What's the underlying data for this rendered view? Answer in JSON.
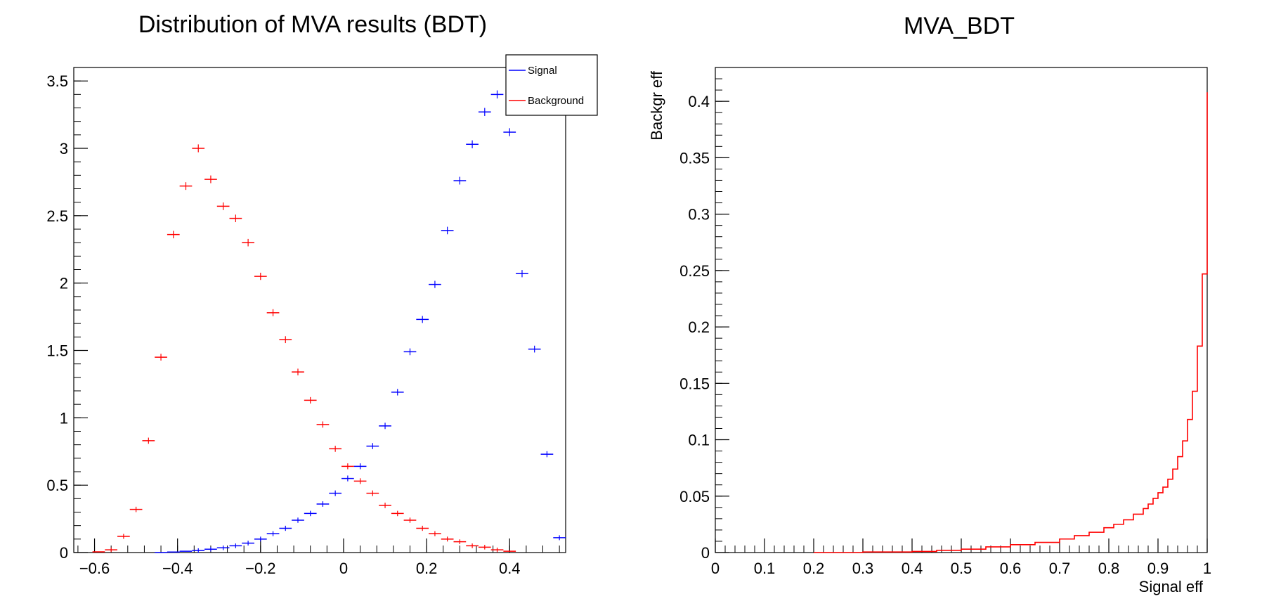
{
  "chart_data": [
    {
      "type": "scatter",
      "title": "Distribution of MVA results (BDT)",
      "xlabel": "",
      "ylabel": "",
      "xlim": [
        -0.65,
        0.535
      ],
      "ylim": [
        0,
        3.6
      ],
      "x_ticks": [
        "−0.6",
        "−0.4",
        "−0.2",
        "0",
        "0.2",
        "0.4"
      ],
      "x_tick_values": [
        -0.6,
        -0.4,
        -0.2,
        0,
        0.2,
        0.4
      ],
      "y_ticks": [
        "0",
        "0.5",
        "1",
        "1.5",
        "2",
        "2.5",
        "3",
        "3.5"
      ],
      "y_tick_values": [
        0,
        0.5,
        1,
        1.5,
        2,
        2.5,
        3,
        3.5
      ],
      "grid": false,
      "legend_position": "top-right",
      "bin_width": 0.03,
      "series": [
        {
          "name": "Signal",
          "color": "#0000ff",
          "x": [
            -0.44,
            -0.41,
            -0.38,
            -0.35,
            -0.32,
            -0.29,
            -0.26,
            -0.23,
            -0.2,
            -0.17,
            -0.14,
            -0.11,
            -0.08,
            -0.05,
            -0.02,
            0.01,
            0.04,
            0.07,
            0.1,
            0.13,
            0.16,
            0.19,
            0.22,
            0.25,
            0.28,
            0.31,
            0.34,
            0.37,
            0.4,
            0.43,
            0.46,
            0.49,
            0.52
          ],
          "y": [
            0.0,
            0.004,
            0.01,
            0.015,
            0.025,
            0.035,
            0.05,
            0.07,
            0.1,
            0.14,
            0.18,
            0.24,
            0.29,
            0.36,
            0.44,
            0.55,
            0.64,
            0.79,
            0.94,
            1.19,
            1.49,
            1.73,
            1.99,
            2.39,
            2.76,
            3.03,
            3.27,
            3.4,
            3.12,
            2.07,
            1.51,
            0.73,
            0.11
          ]
        },
        {
          "name": "Background",
          "color": "#ff0000",
          "x": [
            -0.59,
            -0.56,
            -0.53,
            -0.5,
            -0.47,
            -0.44,
            -0.41,
            -0.38,
            -0.35,
            -0.32,
            -0.29,
            -0.26,
            -0.23,
            -0.2,
            -0.17,
            -0.14,
            -0.11,
            -0.08,
            -0.05,
            -0.02,
            0.01,
            0.04,
            0.07,
            0.1,
            0.13,
            0.16,
            0.19,
            0.22,
            0.25,
            0.28,
            0.31,
            0.34,
            0.37,
            0.4
          ],
          "y": [
            0.005,
            0.02,
            0.12,
            0.32,
            0.83,
            1.45,
            2.36,
            2.72,
            3.0,
            2.77,
            2.57,
            2.48,
            2.3,
            2.05,
            1.78,
            1.58,
            1.34,
            1.13,
            0.95,
            0.77,
            0.64,
            0.53,
            0.44,
            0.35,
            0.29,
            0.24,
            0.18,
            0.14,
            0.1,
            0.08,
            0.05,
            0.04,
            0.02,
            0.01
          ]
        }
      ]
    },
    {
      "type": "line",
      "title": "MVA_BDT",
      "xlabel": "Signal eff",
      "ylabel": "Backgr eff",
      "xlim": [
        0,
        1
      ],
      "ylim": [
        0,
        0.43
      ],
      "x_ticks": [
        "0",
        "0.1",
        "0.2",
        "0.3",
        "0.4",
        "0.5",
        "0.6",
        "0.7",
        "0.8",
        "0.9",
        "1"
      ],
      "x_tick_values": [
        0,
        0.1,
        0.2,
        0.3,
        0.4,
        0.5,
        0.6,
        0.7,
        0.8,
        0.9,
        1
      ],
      "y_ticks": [
        "0",
        "0.05",
        "0.1",
        "0.15",
        "0.2",
        "0.25",
        "0.3",
        "0.35",
        "0.4"
      ],
      "y_tick_values": [
        0,
        0.05,
        0.1,
        0.15,
        0.2,
        0.25,
        0.3,
        0.35,
        0.4
      ],
      "grid": false,
      "series": [
        {
          "name": "",
          "color": "#ff0000",
          "x": [
            0.2,
            0.3,
            0.4,
            0.45,
            0.5,
            0.55,
            0.6,
            0.65,
            0.7,
            0.73,
            0.76,
            0.79,
            0.81,
            0.83,
            0.85,
            0.87,
            0.88,
            0.89,
            0.9,
            0.91,
            0.92,
            0.93,
            0.94,
            0.95,
            0.96,
            0.97,
            0.98,
            0.99,
            1.0
          ],
          "y": [
            0.0,
            0.0005,
            0.001,
            0.002,
            0.003,
            0.005,
            0.007,
            0.009,
            0.012,
            0.015,
            0.018,
            0.022,
            0.025,
            0.029,
            0.034,
            0.039,
            0.043,
            0.048,
            0.053,
            0.058,
            0.065,
            0.074,
            0.085,
            0.099,
            0.118,
            0.143,
            0.183,
            0.247,
            0.408
          ]
        }
      ]
    }
  ]
}
